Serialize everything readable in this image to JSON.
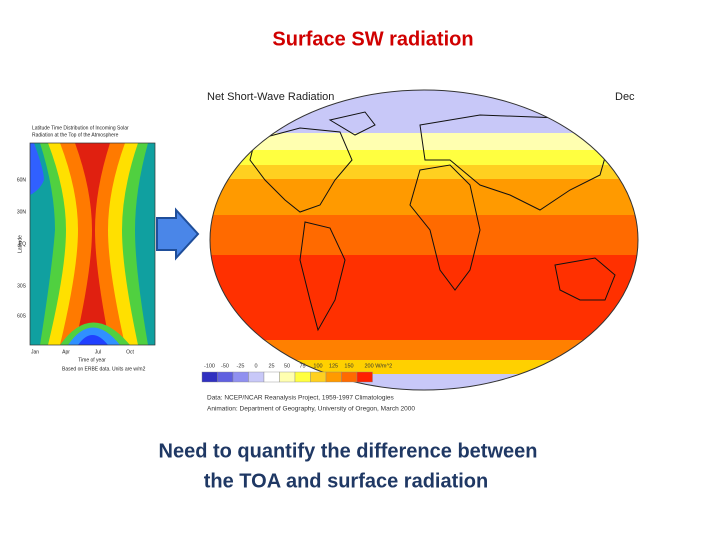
{
  "title": "Surface SW radiation",
  "left_panel": {
    "title_lines": [
      "Latitude Time Distribution of Incoming Solar",
      "Radiation at the Top of the Atmosphere"
    ],
    "y_axis_label": "Latitude",
    "x_axis_label": "Time of year",
    "x_ticks": [
      "Jan",
      "Apr",
      "Jul",
      "Oct"
    ],
    "y_ticks": [
      "60N",
      "30N",
      "EQ",
      "30S",
      "60S"
    ],
    "note": "Based on ERBE data. Units are w/m2"
  },
  "map": {
    "title": "Net Short-Wave Radiation",
    "month": "Dec",
    "colorbar_labels": [
      "-100",
      "-50",
      "-25",
      "0",
      "25",
      "50",
      "75",
      "100",
      "125",
      "150",
      "200 W/m^2"
    ],
    "credits": [
      "Data: NCEP/NCAR Reanalysis Project, 1959-1997 Climatologies",
      "Animation: Department of Geography, University of Oregon, March 2000"
    ]
  },
  "caption": [
    "Need to quantify the difference between",
    "the TOA and surface radiation"
  ]
}
